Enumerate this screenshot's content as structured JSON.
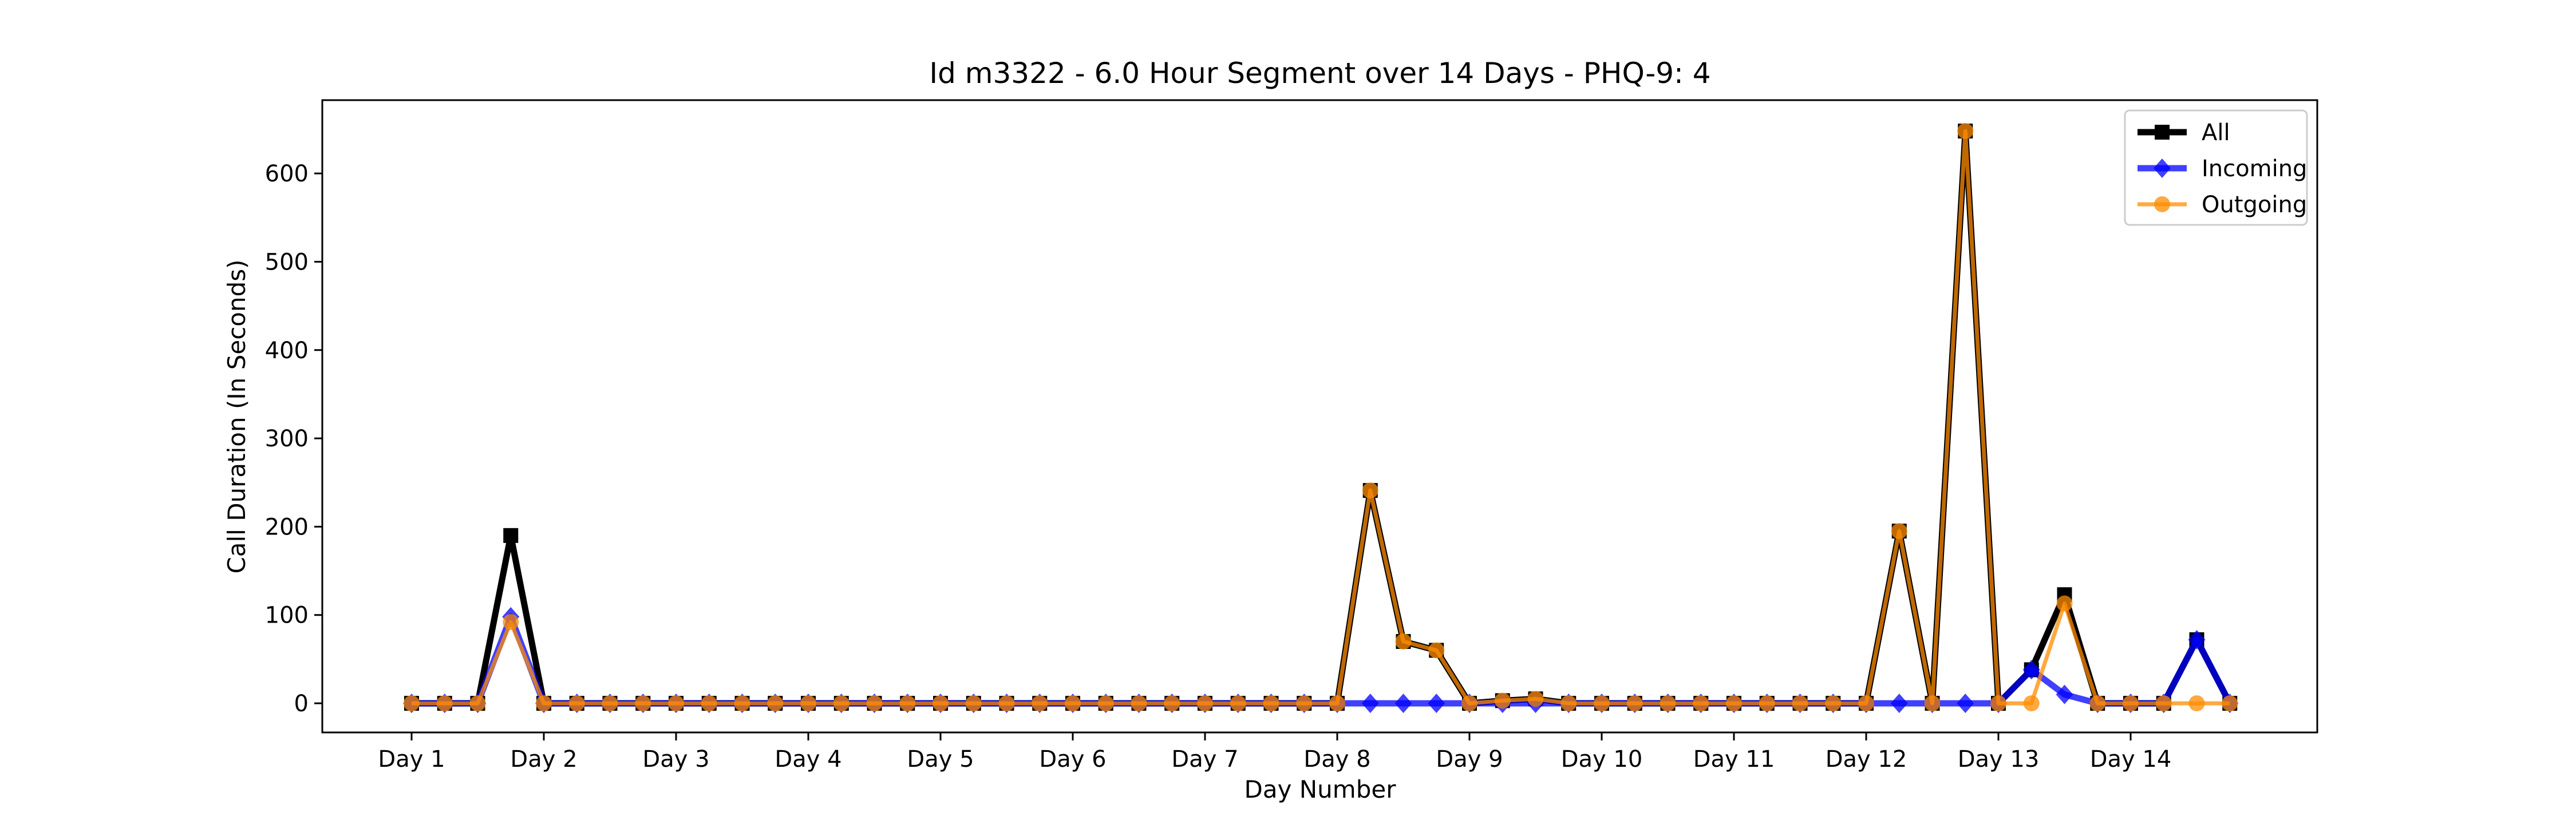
{
  "chart_data": {
    "type": "line",
    "title": "Id m3322 - 6.0 Hour Segment over 14 Days - PHQ-9: 4",
    "xlabel": "Day Number",
    "ylabel": "Call Duration (In Seconds)",
    "ylim": [
      -33,
      683
    ],
    "yticks": [
      0,
      100,
      200,
      300,
      400,
      500,
      600
    ],
    "xticks": [
      {
        "pos": 0,
        "label": "Day 1"
      },
      {
        "pos": 4,
        "label": "Day 2"
      },
      {
        "pos": 8,
        "label": "Day 3"
      },
      {
        "pos": 12,
        "label": "Day 4"
      },
      {
        "pos": 16,
        "label": "Day 5"
      },
      {
        "pos": 20,
        "label": "Day 6"
      },
      {
        "pos": 24,
        "label": "Day 7"
      },
      {
        "pos": 28,
        "label": "Day 8"
      },
      {
        "pos": 32,
        "label": "Day 9"
      },
      {
        "pos": 36,
        "label": "Day 10"
      },
      {
        "pos": 40,
        "label": "Day 11"
      },
      {
        "pos": 44,
        "label": "Day 12"
      },
      {
        "pos": 48,
        "label": "Day 13"
      },
      {
        "pos": 52,
        "label": "Day 14"
      }
    ],
    "grid": false,
    "legend_position": "top-right",
    "x": [
      0,
      1,
      2,
      3,
      4,
      5,
      6,
      7,
      8,
      9,
      10,
      11,
      12,
      13,
      14,
      15,
      16,
      17,
      18,
      19,
      20,
      21,
      22,
      23,
      24,
      25,
      26,
      27,
      28,
      29,
      30,
      31,
      32,
      33,
      34,
      35,
      36,
      37,
      38,
      39,
      40,
      41,
      42,
      43,
      44,
      45,
      46,
      47,
      48,
      49,
      50,
      51,
      52,
      53,
      54,
      55
    ],
    "series": [
      {
        "name": "All",
        "color": "#000000",
        "marker": "square",
        "values": [
          0,
          0,
          0,
          190,
          0,
          0,
          0,
          0,
          0,
          0,
          0,
          0,
          0,
          0,
          0,
          0,
          0,
          0,
          0,
          0,
          0,
          0,
          0,
          0,
          0,
          0,
          0,
          0,
          0,
          241,
          70,
          60,
          0,
          3,
          5,
          0,
          0,
          0,
          0,
          0,
          0,
          0,
          0,
          0,
          0,
          195,
          0,
          648,
          0,
          38,
          123,
          0,
          0,
          0,
          72,
          0
        ]
      },
      {
        "name": "Incoming",
        "color": "#0000ff",
        "marker": "diamond",
        "values": [
          0,
          0,
          0,
          98,
          0,
          0,
          0,
          0,
          0,
          0,
          0,
          0,
          0,
          0,
          0,
          0,
          0,
          0,
          0,
          0,
          0,
          0,
          0,
          0,
          0,
          0,
          0,
          0,
          0,
          0,
          0,
          0,
          0,
          0,
          0,
          0,
          0,
          0,
          0,
          0,
          0,
          0,
          0,
          0,
          0,
          0,
          0,
          0,
          0,
          38,
          10,
          0,
          0,
          0,
          72,
          0
        ]
      },
      {
        "name": "Outgoing",
        "color": "#ff8c00",
        "marker": "circle",
        "values": [
          0,
          0,
          0,
          92,
          0,
          0,
          0,
          0,
          0,
          0,
          0,
          0,
          0,
          0,
          0,
          0,
          0,
          0,
          0,
          0,
          0,
          0,
          0,
          0,
          0,
          0,
          0,
          0,
          0,
          241,
          70,
          60,
          0,
          3,
          5,
          0,
          0,
          0,
          0,
          0,
          0,
          0,
          0,
          0,
          0,
          195,
          0,
          648,
          0,
          0,
          113,
          0,
          0,
          0,
          0,
          0
        ]
      }
    ]
  }
}
